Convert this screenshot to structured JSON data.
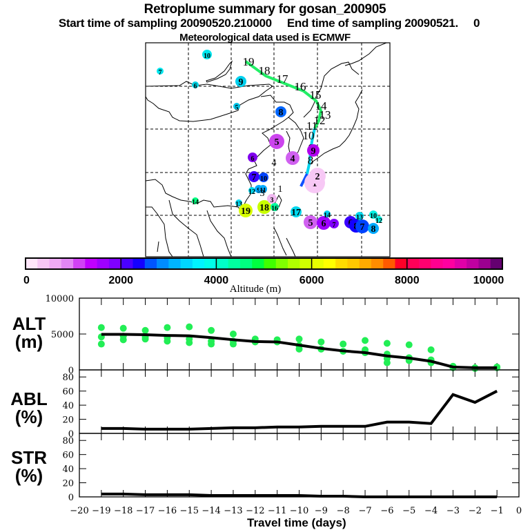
{
  "header": {
    "title": "Retroplume summary for gosan_200905",
    "subtitle": "Start time of sampling 20090520.210000     End time of sampling 20090521.     0",
    "met_line": "Meteorological data used is ECMWF"
  },
  "colorbar": {
    "label": "Altitude (m)",
    "ticks": [
      "0",
      "2000",
      "4000",
      "6000",
      "8000",
      "10000"
    ],
    "range": [
      0,
      10000
    ],
    "colors": [
      "#ffe6fa",
      "#f7c8f5",
      "#efaaf5",
      "#e287f5",
      "#d142f5",
      "#c000ff",
      "#9f00ff",
      "#7f00ff",
      "#4a00ff",
      "#1400ff",
      "#0055ff",
      "#008cff",
      "#00b4ff",
      "#00d6ff",
      "#00f4ff",
      "#00ffe8",
      "#00ffc8",
      "#00ffa0",
      "#00ff80",
      "#00ff40",
      "#40ff00",
      "#80ff00",
      "#b0ff00",
      "#d0ff00",
      "#e8ff00",
      "#ffff00",
      "#ffdc00",
      "#ffc800",
      "#ffaa00",
      "#ff8c00",
      "#ff5a00",
      "#ff0028",
      "#ff0058",
      "#ff0070",
      "#ff0090",
      "#ff00a0",
      "#e000a8",
      "#c000a0",
      "#9c0090",
      "#640070"
    ]
  },
  "map": {
    "trajectory_labels": [
      "19",
      "18",
      "17",
      "16",
      "15",
      "14",
      "13",
      "12",
      "11",
      "10",
      "9",
      "8"
    ],
    "plume_points": [
      {
        "label": "10",
        "color": "#00e6ee"
      },
      {
        "label": "7",
        "color": "#00e6ee"
      },
      {
        "label": "6",
        "color": "#00d0e0"
      },
      {
        "label": "9",
        "color": "#00d0ee"
      },
      {
        "label": "5",
        "color": "#00c4e8"
      },
      {
        "label": "8",
        "color": "#0066ff"
      },
      {
        "label": "5",
        "color": "#cc44ee"
      },
      {
        "label": "4",
        "color": "#d060f0"
      },
      {
        "label": "6",
        "color": "#8000ee"
      },
      {
        "label": "7",
        "color": "#3a00ff"
      },
      {
        "label": "10",
        "color": "#0044ff"
      },
      {
        "label": "9",
        "color": "#00aaff"
      },
      {
        "label": "12",
        "color": "#00d8ee"
      },
      {
        "label": "11",
        "color": "#00aaff"
      },
      {
        "label": "13",
        "color": "#00d8ee"
      },
      {
        "label": "19",
        "color": "#d8ff00"
      },
      {
        "label": "18",
        "color": "#c8ff00"
      },
      {
        "label": "16",
        "color": "#00ffa0"
      },
      {
        "label": "14",
        "color": "#00ff80"
      },
      {
        "label": "17",
        "color": "#00d8ee"
      },
      {
        "label": "3",
        "color": "#f0b8f0"
      },
      {
        "label": "5",
        "color": "#d060f0"
      },
      {
        "label": "6",
        "color": "#9f00ff"
      },
      {
        "label": "7",
        "color": "#8000ff"
      },
      {
        "label": "14",
        "color": "#00ccee"
      },
      {
        "label": "6",
        "color": "#3a00ff"
      },
      {
        "label": "8",
        "color": "#1400ff"
      },
      {
        "label": "7",
        "color": "#0044ff"
      },
      {
        "label": "8",
        "color": "#00aaff"
      },
      {
        "label": "13",
        "color": "#00d8ee"
      },
      {
        "label": "10",
        "color": "#00f0e0"
      },
      {
        "label": "12",
        "color": "#00f0e0"
      },
      {
        "label": "1",
        "color": "#f7c8f5"
      },
      {
        "label": "2",
        "color": "#f7c8f5"
      },
      {
        "label": "9",
        "color": "#b000ee"
      }
    ]
  },
  "chart_data": [
    {
      "type": "line",
      "panel": "ALT",
      "ylabel": "ALT\n(m)",
      "ylabel_main": "ALT",
      "ylabel_unit": "(m)",
      "ylim": [
        0,
        10000
      ],
      "yticks": [
        "0",
        "5000",
        "10000"
      ],
      "x": [
        -19,
        -18,
        -17,
        -16,
        -15,
        -14,
        -13,
        -12,
        -11,
        -10,
        -9,
        -8,
        -7,
        -6,
        -5,
        -4,
        -3,
        -2,
        -1
      ],
      "series": [
        {
          "name": "mean altitude",
          "values": [
            4950,
            4950,
            4900,
            4800,
            4750,
            4500,
            4200,
            3950,
            3900,
            3450,
            3000,
            2650,
            2400,
            1950,
            1650,
            1200,
            400,
            300,
            300
          ]
        }
      ],
      "scatter": {
        "name": "plume particles",
        "color": "#22ee55",
        "points": [
          [
            -19,
            5900
          ],
          [
            -19,
            4600
          ],
          [
            -19,
            3600
          ],
          [
            -18,
            5800
          ],
          [
            -18,
            4700
          ],
          [
            -18,
            4200
          ],
          [
            -17,
            5500
          ],
          [
            -17,
            4600
          ],
          [
            -17,
            4300
          ],
          [
            -16,
            5900
          ],
          [
            -16,
            4500
          ],
          [
            -16,
            4000
          ],
          [
            -15,
            6000
          ],
          [
            -15,
            4300
          ],
          [
            -15,
            3800
          ],
          [
            -14,
            5500
          ],
          [
            -14,
            4000
          ],
          [
            -14,
            3600
          ],
          [
            -13,
            5000
          ],
          [
            -13,
            4000
          ],
          [
            -13,
            3600
          ],
          [
            -12,
            4300
          ],
          [
            -12,
            3900
          ],
          [
            -11,
            4200
          ],
          [
            -11,
            3900
          ],
          [
            -10,
            4300
          ],
          [
            -10,
            3400
          ],
          [
            -10,
            2900
          ],
          [
            -9,
            3900
          ],
          [
            -9,
            2900
          ],
          [
            -8,
            3600
          ],
          [
            -8,
            2600
          ],
          [
            -7,
            4100
          ],
          [
            -7,
            2800
          ],
          [
            -7,
            2400
          ],
          [
            -6,
            3700
          ],
          [
            -6,
            2200
          ],
          [
            -6,
            1600
          ],
          [
            -6,
            1000
          ],
          [
            -5,
            3500
          ],
          [
            -5,
            1700
          ],
          [
            -5,
            1300
          ],
          [
            -4,
            1400
          ],
          [
            -4,
            1000
          ],
          [
            -4,
            2800
          ],
          [
            -3,
            500
          ],
          [
            -3,
            300
          ],
          [
            -2,
            300
          ],
          [
            -2,
            200
          ],
          [
            -1,
            400
          ],
          [
            -1,
            300
          ]
        ]
      }
    },
    {
      "type": "line",
      "panel": "ABL",
      "ylabel_main": "ABL",
      "ylabel_unit": "(%)",
      "ylim": [
        0,
        90
      ],
      "yticks": [
        "0",
        "20",
        "40",
        "60",
        "80"
      ],
      "x": [
        -19,
        -18,
        -17,
        -16,
        -15,
        -14,
        -13,
        -12,
        -11,
        -10,
        -9,
        -8,
        -7,
        -6,
        -5,
        -4,
        -3,
        -2,
        -1
      ],
      "series": [
        {
          "name": "ABL fraction",
          "values": [
            7,
            7,
            6,
            6,
            6,
            7,
            8,
            8,
            9,
            9,
            10,
            10,
            10,
            16,
            16,
            14,
            55,
            44,
            60
          ]
        }
      ]
    },
    {
      "type": "line",
      "panel": "STR",
      "ylabel_main": "STR",
      "ylabel_unit": "(%)",
      "ylim": [
        0,
        90
      ],
      "yticks": [
        "0",
        "20",
        "40",
        "60",
        "80"
      ],
      "x": [
        -19,
        -18,
        -17,
        -16,
        -15,
        -14,
        -13,
        -12,
        -11,
        -10,
        -9,
        -8,
        -7,
        -6,
        -5,
        -4,
        -3,
        -2,
        -1
      ],
      "series": [
        {
          "name": "STR fraction",
          "values": [
            4,
            4,
            3,
            3,
            3,
            2,
            2,
            2,
            2,
            2,
            1,
            1,
            0,
            0,
            0,
            0,
            0,
            0,
            0
          ]
        }
      ],
      "xlabel": "Travel time (days)",
      "xlim": [
        -20,
        0
      ],
      "xticks": [
        "−20",
        "−19",
        "−18",
        "−17",
        "−16",
        "−15",
        "−14",
        "−13",
        "−12",
        "−11",
        "−10",
        "−9",
        "−8",
        "−7",
        "−6",
        "−5",
        "−4",
        "−3",
        "−2",
        "−1",
        "0"
      ]
    }
  ]
}
